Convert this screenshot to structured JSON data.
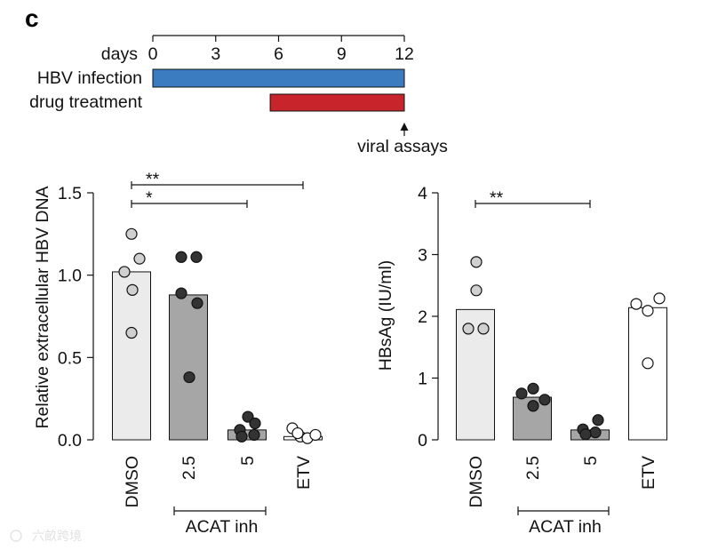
{
  "panel_label": "c",
  "timeline": {
    "axis_label": "days",
    "range": [
      0,
      12
    ],
    "ticks": [
      0,
      3,
      6,
      9,
      12
    ],
    "rows": [
      {
        "label": "HBV infection",
        "start": 0,
        "end": 12,
        "color": "#3b7cc1"
      },
      {
        "label": "drug treatment",
        "start": 5.6,
        "end": 12,
        "color": "#c7252b"
      }
    ],
    "endpoint": {
      "label": "viral assays",
      "day": 12
    }
  },
  "chart_data": [
    {
      "type": "bar",
      "ylabel": "Relative extracellular HBV DNA",
      "ylim": [
        0,
        1.5
      ],
      "yticks": [
        "0.0",
        "0.5",
        "1.0",
        "1.5"
      ],
      "categories": [
        "DMSO",
        "2.5",
        "5",
        "ETV"
      ],
      "values": [
        1.02,
        0.88,
        0.06,
        0.02
      ],
      "points": [
        [
          1.25,
          1.1,
          1.02,
          0.91,
          0.65
        ],
        [
          1.11,
          1.11,
          0.89,
          0.83,
          0.38
        ],
        [
          0.14,
          0.1,
          0.06,
          0.03,
          0.02
        ],
        [
          0.07,
          0.02,
          0.01,
          0.03,
          0.04
        ]
      ],
      "bar_colors": [
        "#ebebeb",
        "#a6a6a6",
        "#a6a6a6",
        "#ffffff"
      ],
      "point_colors": [
        "#d0d0d0",
        "#333333",
        "#333333",
        "#ffffff"
      ],
      "significance": [
        {
          "from": "DMSO",
          "to": "5",
          "label": "*"
        },
        {
          "from": "DMSO",
          "to": "ETV",
          "label": "**"
        }
      ],
      "group_label": {
        "text": "ACAT inh",
        "from": "2.5",
        "to": "5"
      },
      "grid": false
    },
    {
      "type": "bar",
      "ylabel": "HBsAg (IU/ml)",
      "ylim": [
        0,
        4
      ],
      "yticks": [
        "0",
        "1",
        "2",
        "3",
        "4"
      ],
      "categories": [
        "DMSO",
        "2.5",
        "5",
        "ETV"
      ],
      "values": [
        2.11,
        0.69,
        0.16,
        2.14
      ],
      "points": [
        [
          2.88,
          2.42,
          1.8,
          1.8
        ],
        [
          0.75,
          0.83,
          0.65,
          0.55
        ],
        [
          0.17,
          0.32,
          0.12,
          0.09
        ],
        [
          2.2,
          2.29,
          2.09,
          1.24
        ]
      ],
      "bar_colors": [
        "#ebebeb",
        "#a6a6a6",
        "#a6a6a6",
        "#ffffff"
      ],
      "point_colors": [
        "#d0d0d0",
        "#333333",
        "#333333",
        "#ffffff"
      ],
      "significance": [
        {
          "from": "DMSO",
          "to": "5",
          "label": "**"
        }
      ],
      "group_label": {
        "text": "ACAT inh",
        "from": "2.5",
        "to": "5"
      },
      "grid": false
    }
  ],
  "watermark": "六畝跨境"
}
